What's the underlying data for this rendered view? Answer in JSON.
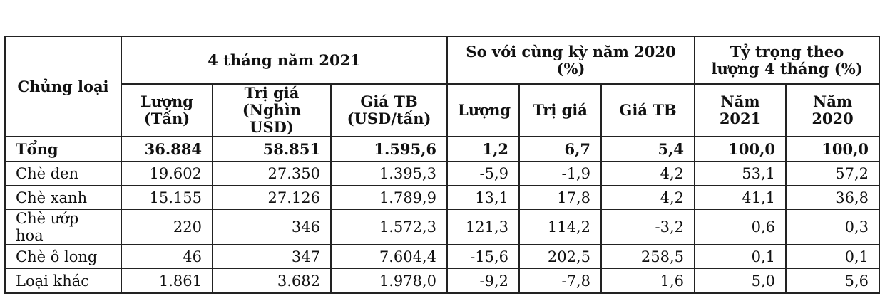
{
  "header": {
    "col_type": "Chủng loại",
    "group_2021": "4 tháng năm 2021",
    "group_compare": "So với cùng kỳ năm 2020 (%)",
    "group_share": "Tỷ trọng theo lượng 4 tháng (%)",
    "sub": {
      "volume": "Lượng (Tấn)",
      "value": "Trị giá (Nghìn USD)",
      "avg_price": "Giá TB (USD/tấn)",
      "cmp_volume": "Lượng",
      "cmp_value": "Trị giá",
      "cmp_avg_price": "Giá TB",
      "share_2021": "Năm 2021",
      "share_2020": "Năm 2020"
    }
  },
  "rows": [
    {
      "name": "Tổng",
      "volume": "36.884",
      "value": "58.851",
      "avg_price": "1.595,6",
      "cmp_volume": "1,2",
      "cmp_value": "6,7",
      "cmp_avg_price": "5,4",
      "share_2021": "100,0",
      "share_2020": "100,0"
    },
    {
      "name": "Chè đen",
      "volume": "19.602",
      "value": "27.350",
      "avg_price": "1.395,3",
      "cmp_volume": "-5,9",
      "cmp_value": "-1,9",
      "cmp_avg_price": "4,2",
      "share_2021": "53,1",
      "share_2020": "57,2"
    },
    {
      "name": "Chè xanh",
      "volume": "15.155",
      "value": "27.126",
      "avg_price": "1.789,9",
      "cmp_volume": "13,1",
      "cmp_value": "17,8",
      "cmp_avg_price": "4,2",
      "share_2021": "41,1",
      "share_2020": "36,8"
    },
    {
      "name": "Chè ướp hoa",
      "volume": "220",
      "value": "346",
      "avg_price": "1.572,3",
      "cmp_volume": "121,3",
      "cmp_value": "114,2",
      "cmp_avg_price": "-3,2",
      "share_2021": "0,6",
      "share_2020": "0,3"
    },
    {
      "name": "Chè ô long",
      "volume": "46",
      "value": "347",
      "avg_price": "7.604,4",
      "cmp_volume": "-15,6",
      "cmp_value": "202,5",
      "cmp_avg_price": "258,5",
      "share_2021": "0,1",
      "share_2020": "0,1"
    },
    {
      "name": "Loại khác",
      "volume": "1.861",
      "value": "3.682",
      "avg_price": "1.978,0",
      "cmp_volume": "-9,2",
      "cmp_value": "-7,8",
      "cmp_avg_price": "1,6",
      "share_2021": "5,0",
      "share_2020": "5,6"
    }
  ]
}
